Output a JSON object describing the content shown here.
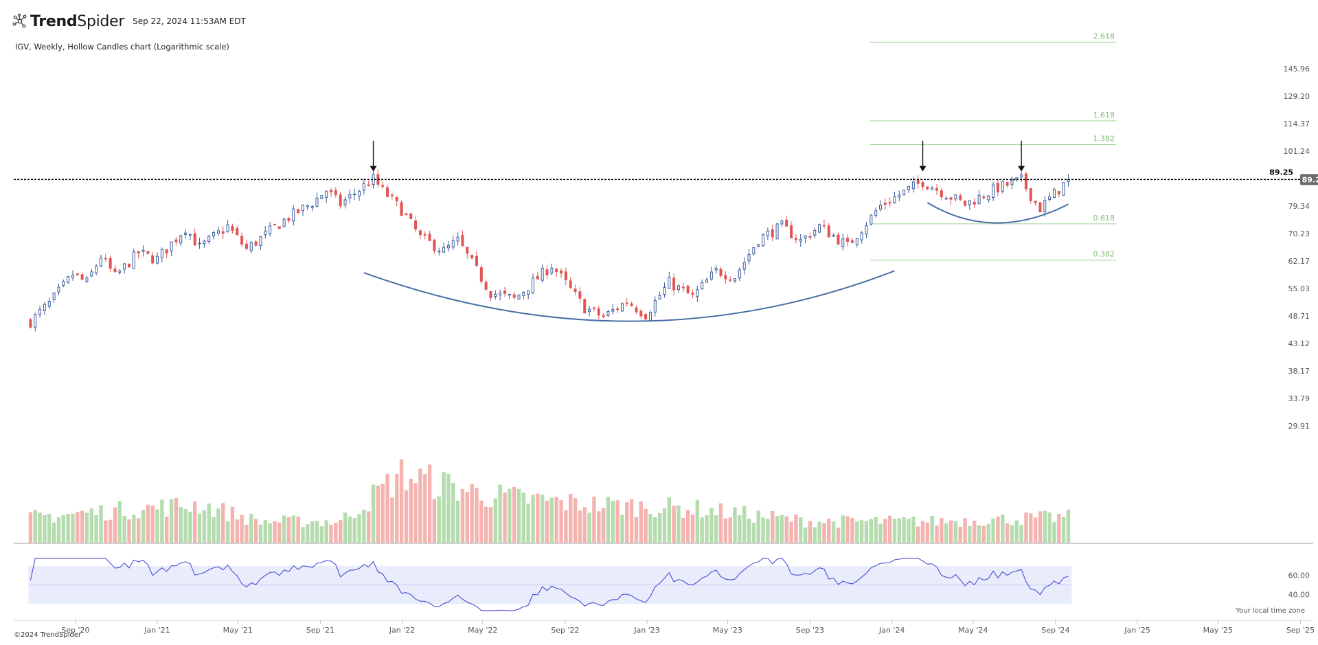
{
  "header": {
    "brand_bold": "Trend",
    "brand_light": "Spider",
    "timestamp": "Sep 22, 2024 11:53AM EDT",
    "subtitle": "IGV, Weekly, Hollow Candles chart (Logarithmic scale)"
  },
  "footer": {
    "copyright": "©2024 TrendSpider",
    "timezone_note": "Your local time zone"
  },
  "icons": [
    "trendspider-logo-icon",
    "down-arrow-marker"
  ],
  "colors": {
    "up": "#3b5a9d",
    "down": "#e05454",
    "vol_up": "#b5dcae",
    "vol_down": "#f5b3b0",
    "fib": "#9dd493",
    "rsi_line": "#4a4ad6",
    "rsi_band": "#e9ecfb",
    "arc": "#4a6fa5",
    "last_price_bg": "#6b6b6b"
  },
  "chart_data": {
    "type": "candlestick",
    "symbol": "IGV",
    "interval": "Weekly",
    "style": "Hollow Candles",
    "scale": "log",
    "x_axis_labels": [
      "Sep '20",
      "Jan '21",
      "May '21",
      "Sep '21",
      "Jan '22",
      "May '22",
      "Sep '22",
      "Jan '23",
      "May '23",
      "Sep '23",
      "Jan '24",
      "May '24",
      "Sep '24",
      "Jan '25",
      "May '25",
      "Sep '25"
    ],
    "x_range": [
      "2020-06",
      "2025-09"
    ],
    "y_ticks": [
      145.96,
      129.2,
      114.37,
      101.24,
      79.34,
      70.23,
      62.17,
      55.03,
      48.71,
      43.12,
      38.17,
      33.79,
      29.91
    ],
    "y_range": [
      29.0,
      170.0
    ],
    "last_price": "89.20",
    "resistance_level": "89.25",
    "fib_levels": [
      {
        "label": "2.618",
        "value": 164.2
      },
      {
        "label": "1.618",
        "value": 115.8
      },
      {
        "label": "1.382",
        "value": 104.2
      },
      {
        "label": "0.618",
        "value": 73.3
      },
      {
        "label": "0.382",
        "value": 62.4
      }
    ],
    "close_anchors": [
      {
        "date": "2020-06-26",
        "close": 47.5
      },
      {
        "date": "2020-07-24",
        "close": 51.5
      },
      {
        "date": "2020-08-28",
        "close": 58.5
      },
      {
        "date": "2020-09-18",
        "close": 56.5
      },
      {
        "date": "2020-10-09",
        "close": 63.5
      },
      {
        "date": "2020-10-30",
        "close": 58.0
      },
      {
        "date": "2020-12-04",
        "close": 64.5
      },
      {
        "date": "2020-12-31",
        "close": 62.5
      },
      {
        "date": "2021-02-12",
        "close": 72.0
      },
      {
        "date": "2021-03-05",
        "close": 66.0
      },
      {
        "date": "2021-04-16",
        "close": 72.5
      },
      {
        "date": "2021-05-14",
        "close": 65.5
      },
      {
        "date": "2021-07-09",
        "close": 74.5
      },
      {
        "date": "2021-08-20",
        "close": 80.5
      },
      {
        "date": "2021-09-10",
        "close": 85.0
      },
      {
        "date": "2021-10-01",
        "close": 80.0
      },
      {
        "date": "2021-11-19",
        "close": 89.5
      },
      {
        "date": "2021-12-03",
        "close": 85.0
      },
      {
        "date": "2021-12-31",
        "close": 78.0
      },
      {
        "date": "2022-01-28",
        "close": 69.0
      },
      {
        "date": "2022-03-04",
        "close": 65.0
      },
      {
        "date": "2022-03-25",
        "close": 68.0
      },
      {
        "date": "2022-05-13",
        "close": 54.0
      },
      {
        "date": "2022-06-17",
        "close": 52.5
      },
      {
        "date": "2022-08-12",
        "close": 61.0
      },
      {
        "date": "2022-09-30",
        "close": 50.5
      },
      {
        "date": "2022-10-28",
        "close": 48.5
      },
      {
        "date": "2022-12-02",
        "close": 52.0
      },
      {
        "date": "2022-12-30",
        "close": 49.0
      },
      {
        "date": "2023-02-03",
        "close": 56.5
      },
      {
        "date": "2023-03-10",
        "close": 53.0
      },
      {
        "date": "2023-04-14",
        "close": 59.5
      },
      {
        "date": "2023-05-12",
        "close": 58.0
      },
      {
        "date": "2023-06-16",
        "close": 68.5
      },
      {
        "date": "2023-07-21",
        "close": 72.5
      },
      {
        "date": "2023-08-18",
        "close": 68.0
      },
      {
        "date": "2023-09-15",
        "close": 72.5
      },
      {
        "date": "2023-10-27",
        "close": 66.5
      },
      {
        "date": "2023-12-15",
        "close": 79.5
      },
      {
        "date": "2024-02-16",
        "close": 88.5
      },
      {
        "date": "2024-03-15",
        "close": 84.5
      },
      {
        "date": "2024-04-19",
        "close": 80.0
      },
      {
        "date": "2024-06-07",
        "close": 86.0
      },
      {
        "date": "2024-07-12",
        "close": 89.0
      },
      {
        "date": "2024-08-02",
        "close": 80.5
      },
      {
        "date": "2024-08-09",
        "close": 78.5
      },
      {
        "date": "2024-09-20",
        "close": 89.2
      }
    ],
    "volume_anchors": [
      {
        "date": "2020-06-26",
        "rel": 0.3
      },
      {
        "date": "2021-03-05",
        "rel": 0.45
      },
      {
        "date": "2021-06-01",
        "rel": 0.25
      },
      {
        "date": "2021-10-01",
        "rel": 0.25
      },
      {
        "date": "2021-12-31",
        "rel": 0.8
      },
      {
        "date": "2022-05-13",
        "rel": 0.55
      },
      {
        "date": "2022-10-01",
        "rel": 0.45
      },
      {
        "date": "2023-03-10",
        "rel": 0.4
      },
      {
        "date": "2023-09-01",
        "rel": 0.25
      },
      {
        "date": "2024-03-01",
        "rel": 0.25
      },
      {
        "date": "2024-09-20",
        "rel": 0.3
      }
    ],
    "rsi_range": [
      20,
      80
    ],
    "rsi_bands": [
      30,
      70
    ],
    "rsi_ticks": [
      60.0,
      40.0
    ]
  }
}
